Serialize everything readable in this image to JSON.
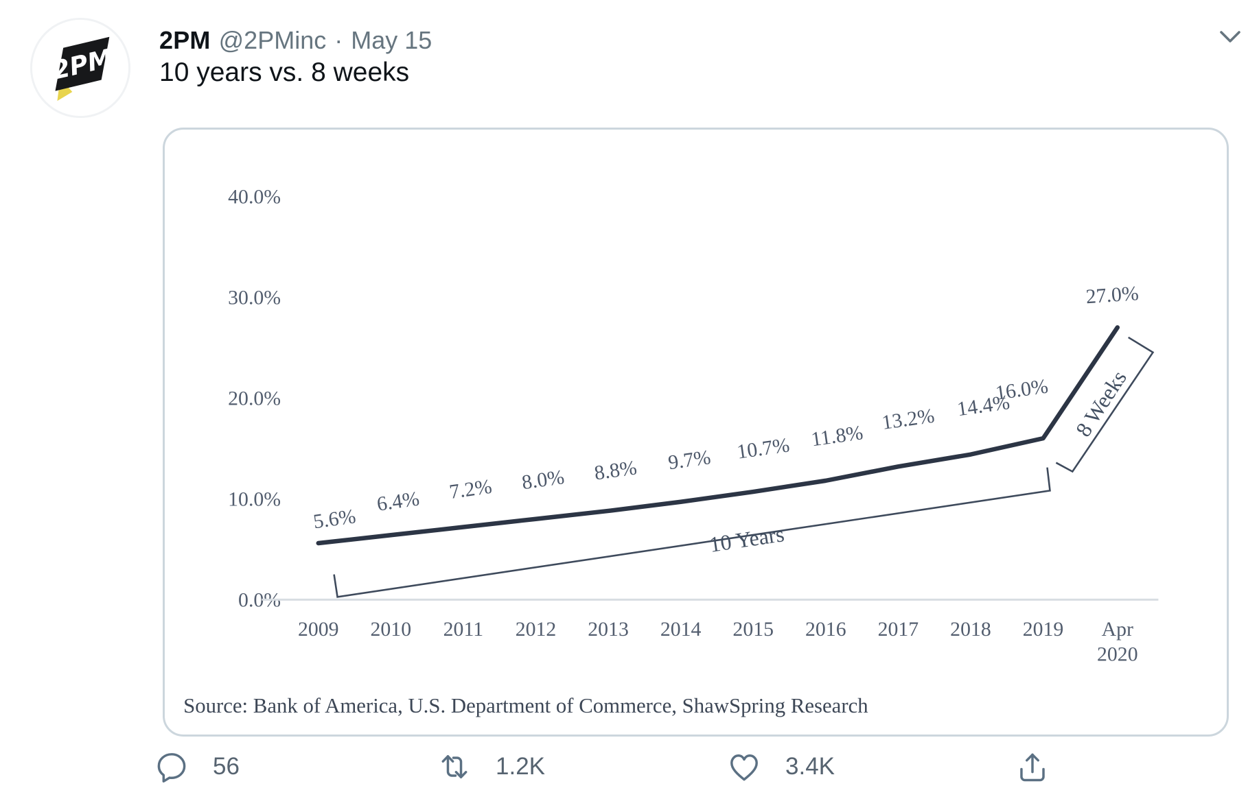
{
  "tweet": {
    "author": "2PM",
    "handle": "@2PMinc",
    "separator": "·",
    "date": "May 15",
    "text": "10 years vs. 8 weeks",
    "avatar_logo_text": "2PM",
    "actions": {
      "replies": "56",
      "retweets": "1.2K",
      "likes": "3.4K"
    }
  },
  "chart_data": {
    "type": "line",
    "title": "",
    "categories": [
      "2009",
      "2010",
      "2011",
      "2012",
      "2013",
      "2014",
      "2015",
      "2016",
      "2017",
      "2018",
      "2019",
      "Apr 2020"
    ],
    "values": [
      5.6,
      6.4,
      7.2,
      8.0,
      8.8,
      9.7,
      10.7,
      11.8,
      13.2,
      14.4,
      16.0,
      27.0
    ],
    "point_labels": [
      "5.6%",
      "6.4%",
      "7.2%",
      "8.0%",
      "8.8%",
      "9.7%",
      "10.7%",
      "11.8%",
      "13.2%",
      "14.4%",
      "16.0%",
      "27.0%"
    ],
    "y_ticks": [
      {
        "label": "40.0%",
        "value": 40
      },
      {
        "label": "30.0%",
        "value": 30
      },
      {
        "label": "20.0%",
        "value": 20
      },
      {
        "label": "10.0%",
        "value": 10
      },
      {
        "label": "0.0%",
        "value": 0
      }
    ],
    "ylim": [
      0,
      40
    ],
    "grid": false,
    "legend": "none",
    "annotations": [
      "10 Years",
      "8 Weeks"
    ],
    "source": "Source: Bank of America, U.S. Department of Commerce, ShawSpring Research",
    "line_color": "#2c3545",
    "bracket_color": "#3e4a5c",
    "axis_color": "#d8dde2",
    "text_color": "#4c5769",
    "logo_yellow": "#e8d44d",
    "logo_black": "#17181a"
  }
}
